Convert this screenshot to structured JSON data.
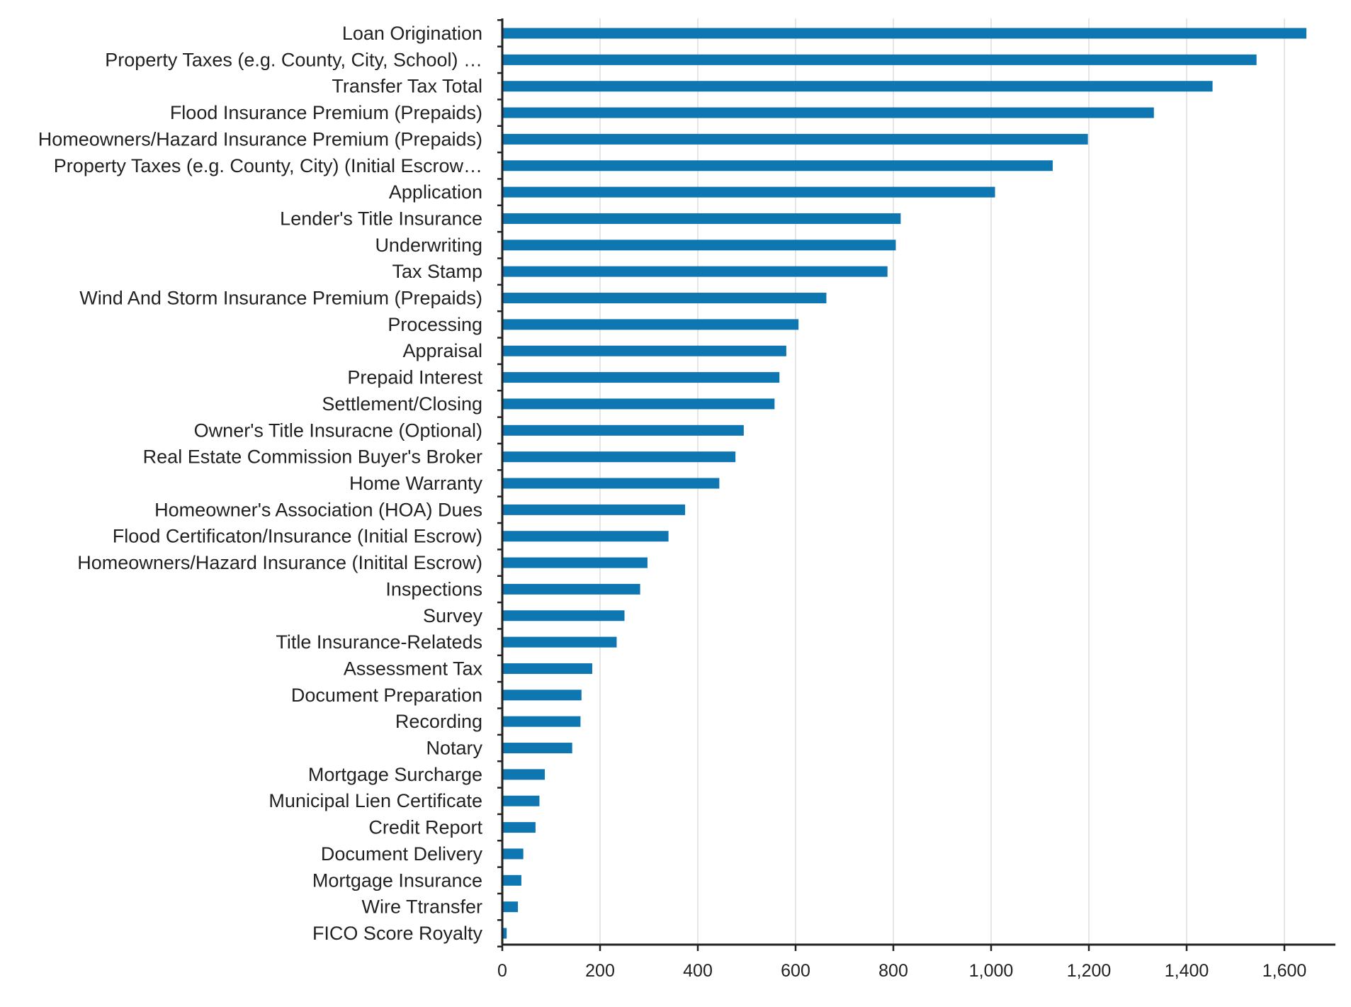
{
  "chart_data": {
    "type": "bar",
    "orientation": "horizontal",
    "categories": [
      "Loan Origination",
      "Property Taxes (e.g. County, City, School) …",
      "Transfer Tax Total",
      "Flood Insurance Premium (Prepaids)",
      "Homeowners/Hazard Insurance Premium (Prepaids)",
      "Property Taxes (e.g. County, City) (Initial Escrow…",
      "Application",
      "Lender's Title Insurance",
      "Underwriting",
      "Tax Stamp",
      "Wind And Storm Insurance Premium (Prepaids)",
      "Processing",
      "Appraisal",
      "Prepaid Interest",
      "Settlement/Closing",
      "Owner's Title Insuracne (Optional)",
      "Real Estate Commission Buyer's Broker",
      "Home Warranty",
      "Homeowner's Association (HOA) Dues",
      "Flood Certificaton/Insurance (Initial Escrow)",
      "Homeowners/Hazard Insurance (Initital Escrow)",
      "Inspections",
      "Survey",
      "Title Insurance-Relateds",
      "Assessment Tax",
      "Document Preparation",
      "Recording",
      "Notary",
      "Mortgage Surcharge",
      "Municipal Lien Certificate",
      "Credit Report",
      "Document Delivery",
      "Mortgage Insurance",
      "Wire Ttransfer",
      "FICO Score Royalty"
    ],
    "values": [
      1645,
      1543,
      1453,
      1333,
      1198,
      1126,
      1008,
      815,
      805,
      788,
      663,
      606,
      581,
      567,
      557,
      494,
      477,
      444,
      374,
      340,
      297,
      282,
      250,
      234,
      184,
      162,
      160,
      143,
      87,
      76,
      68,
      43,
      39,
      32,
      9
    ],
    "title": "",
    "xlabel": "",
    "ylabel": "",
    "xlim": [
      0,
      1700
    ],
    "xticks": [
      0,
      200,
      400,
      600,
      800,
      1000,
      1200,
      1400,
      1600
    ],
    "xtick_labels": [
      "0",
      "200",
      "400",
      "600",
      "800",
      "1,000",
      "1,200",
      "1,400",
      "1,600"
    ],
    "grid": "vertical",
    "legend": "none",
    "colors": {
      "bar": "#0E76B1",
      "grid": "#E6E6E6",
      "axis": "#222222",
      "text": "#222222"
    }
  }
}
